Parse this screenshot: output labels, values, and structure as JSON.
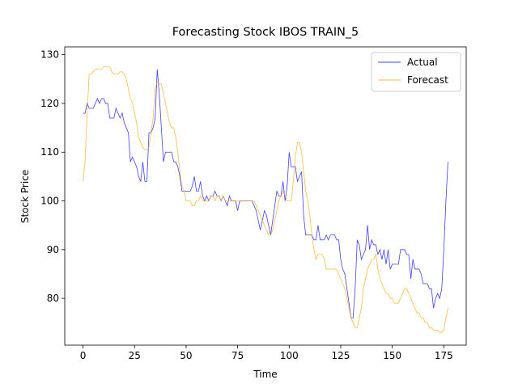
{
  "chart_data": {
    "type": "line",
    "title": "Forecasting Stock IBOS TRAIN_5",
    "x_label": "Time",
    "y_label": "Stock Price",
    "x": [
      0,
      1,
      2,
      3,
      4,
      5,
      6,
      7,
      8,
      9,
      10,
      11,
      12,
      13,
      14,
      15,
      16,
      17,
      18,
      19,
      20,
      21,
      22,
      23,
      24,
      25,
      26,
      27,
      28,
      29,
      30,
      31,
      32,
      33,
      34,
      35,
      36,
      37,
      38,
      39,
      40,
      41,
      42,
      43,
      44,
      45,
      46,
      47,
      48,
      49,
      50,
      51,
      52,
      53,
      54,
      55,
      56,
      57,
      58,
      59,
      60,
      61,
      62,
      63,
      64,
      65,
      66,
      67,
      68,
      69,
      70,
      71,
      72,
      73,
      74,
      75,
      76,
      77,
      78,
      79,
      80,
      81,
      82,
      83,
      84,
      85,
      86,
      87,
      88,
      89,
      90,
      91,
      92,
      93,
      94,
      95,
      96,
      97,
      98,
      99,
      100,
      101,
      102,
      103,
      104,
      105,
      106,
      107,
      108,
      109,
      110,
      111,
      112,
      113,
      114,
      115,
      116,
      117,
      118,
      119,
      120,
      121,
      122,
      123,
      124,
      125,
      126,
      127,
      128,
      129,
      130,
      131,
      132,
      133,
      134,
      135,
      136,
      137,
      138,
      139,
      140,
      141,
      142,
      143,
      144,
      145,
      146,
      147,
      148,
      149,
      150,
      151,
      152,
      153,
      154,
      155,
      156,
      157,
      158,
      159,
      160,
      161,
      162,
      163,
      164,
      165,
      166,
      167,
      168,
      169,
      170,
      171,
      172,
      173,
      174,
      175,
      176,
      177
    ],
    "series": [
      {
        "name": "Actual",
        "color": "#0000ff",
        "values": [
          118,
          118,
          120,
          119,
          119,
          119,
          120,
          121,
          120,
          121,
          121,
          120,
          120,
          117,
          117,
          117,
          119,
          118,
          117,
          118,
          116,
          115,
          114,
          108,
          109,
          108,
          107,
          105,
          104,
          108,
          104,
          104,
          114,
          114,
          115,
          117,
          127,
          122,
          115,
          108,
          110,
          110,
          110,
          110,
          108,
          108,
          107,
          105,
          102,
          102,
          102,
          102,
          102,
          103,
          105,
          102,
          102,
          104,
          101,
          100,
          101,
          100,
          101,
          101,
          102,
          101,
          101,
          100,
          101,
          100,
          99,
          101,
          100,
          100,
          100,
          98,
          100,
          100,
          100,
          100,
          100,
          100,
          100,
          99,
          98,
          96,
          94,
          96,
          98,
          97,
          95,
          93,
          96,
          99,
          102,
          101,
          101,
          104,
          100,
          103,
          110,
          107,
          107,
          107,
          104,
          105,
          106,
          97,
          93,
          93,
          93,
          93,
          92,
          92,
          95,
          92,
          92,
          92,
          93,
          92,
          93,
          93,
          93,
          92,
          92,
          88,
          86,
          85,
          82,
          79,
          76,
          76,
          82,
          92,
          91,
          88,
          89,
          90,
          95,
          90,
          92,
          91,
          91,
          89,
          90,
          88,
          90,
          87,
          90,
          86,
          87,
          87,
          87,
          87,
          90,
          90,
          90,
          89,
          89,
          84,
          88,
          86,
          86,
          86,
          85,
          83,
          83,
          83,
          82,
          82,
          78,
          80,
          81,
          80,
          82,
          90,
          100,
          108
        ]
      },
      {
        "name": "Forecast",
        "color": "orange",
        "values": [
          104,
          108,
          118,
          126,
          126,
          126.5,
          127,
          127,
          127,
          127,
          127.5,
          127.5,
          127.5,
          127.5,
          126.5,
          126,
          126,
          126,
          126.5,
          126.5,
          126,
          125,
          123,
          121,
          120,
          118,
          116,
          113,
          112,
          111,
          110.5,
          110.5,
          111,
          114,
          117,
          123,
          124.5,
          124,
          124,
          122,
          120,
          118,
          116,
          115,
          115,
          113,
          110,
          106,
          103,
          102,
          100,
          100,
          100,
          99,
          99,
          100,
          100,
          101,
          100,
          100,
          100,
          100,
          101,
          101,
          100,
          101,
          101,
          100,
          101,
          100,
          100,
          100,
          100,
          100,
          100,
          100,
          100,
          100,
          100,
          100,
          100,
          100,
          100,
          100,
          99,
          98,
          97,
          96,
          95,
          94,
          93,
          93,
          94,
          96,
          98,
          100,
          101,
          102,
          101,
          100,
          100,
          100,
          104,
          109,
          112,
          112,
          110,
          106,
          102,
          100,
          97,
          93,
          90,
          88,
          89,
          89,
          89,
          88,
          86,
          86,
          86,
          86,
          86,
          86,
          85,
          84,
          83,
          82,
          80,
          78,
          76,
          75,
          74,
          74,
          76,
          78,
          82,
          84,
          86,
          87,
          88,
          88,
          89,
          86,
          84,
          83,
          82,
          81,
          81,
          80,
          80,
          79,
          79,
          79,
          80,
          81,
          82,
          82,
          81,
          80,
          79,
          78,
          77,
          77,
          76,
          76,
          75,
          75,
          74,
          74,
          73.5,
          73.5,
          73.5,
          73,
          73,
          73.5,
          76,
          78
        ]
      }
    ],
    "xlim": [
      -8.85,
      185.85
    ],
    "ylim": [
      70.4,
      131.6
    ],
    "xticks": [
      0,
      25,
      50,
      75,
      100,
      125,
      150,
      175
    ],
    "yticks": [
      80,
      90,
      100,
      110,
      120,
      130
    ],
    "legend": "upper right"
  }
}
